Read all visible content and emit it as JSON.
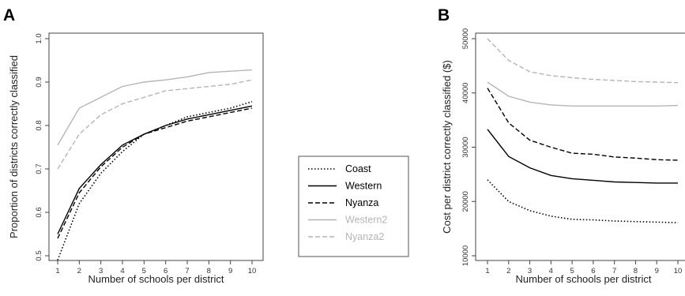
{
  "chart_data": [
    {
      "panel_label": "A",
      "type": "line",
      "xlabel": "Number of schools per district",
      "ylabel": "Proportion of districts correctly classified",
      "x": [
        1,
        2,
        3,
        4,
        5,
        6,
        7,
        8,
        9,
        10
      ],
      "xticks": [
        1,
        2,
        3,
        4,
        5,
        6,
        7,
        8,
        9,
        10
      ],
      "xlim": [
        1,
        10
      ],
      "ylim": [
        0.5,
        1.0
      ],
      "yticks": [
        0.5,
        0.6,
        0.7,
        0.8,
        0.9,
        1.0
      ],
      "ytick_labels": [
        "0.5",
        "0.6",
        "0.7",
        "0.8",
        "0.9",
        "1.0"
      ],
      "grid": false,
      "series": [
        {
          "name": "Coast",
          "color": "#000000",
          "dash": "dotted",
          "values": [
            0.49,
            0.62,
            0.69,
            0.74,
            0.78,
            0.8,
            0.82,
            0.83,
            0.84,
            0.855
          ]
        },
        {
          "name": "Western",
          "color": "#000000",
          "dash": "solid",
          "values": [
            0.55,
            0.655,
            0.71,
            0.755,
            0.78,
            0.8,
            0.815,
            0.825,
            0.835,
            0.845
          ]
        },
        {
          "name": "Nyanza",
          "color": "#000000",
          "dash": "dashed",
          "values": [
            0.54,
            0.645,
            0.705,
            0.75,
            0.78,
            0.795,
            0.81,
            0.82,
            0.83,
            0.84
          ]
        },
        {
          "name": "Western2",
          "color": "#b5b5b5",
          "dash": "solid",
          "values": [
            0.755,
            0.84,
            0.865,
            0.89,
            0.9,
            0.905,
            0.912,
            0.922,
            0.925,
            0.928
          ]
        },
        {
          "name": "Nyanza2",
          "color": "#b5b5b5",
          "dash": "dashed",
          "values": [
            0.7,
            0.78,
            0.825,
            0.85,
            0.865,
            0.88,
            0.885,
            0.89,
            0.895,
            0.905
          ]
        }
      ]
    },
    {
      "panel_label": "B",
      "type": "line",
      "xlabel": "Number of schools per district",
      "ylabel": "Cost per district correctly classified ($)",
      "x": [
        1,
        2,
        3,
        4,
        5,
        6,
        7,
        8,
        9,
        10
      ],
      "xticks": [
        1,
        2,
        3,
        4,
        5,
        6,
        7,
        8,
        9,
        10
      ],
      "xlim": [
        1,
        10
      ],
      "ylim": [
        10000,
        50000
      ],
      "yticks": [
        10000,
        20000,
        30000,
        40000,
        50000
      ],
      "ytick_labels": [
        "10000",
        "20000",
        "30000",
        "40000",
        "50000"
      ],
      "grid": false,
      "series": [
        {
          "name": "Coast",
          "color": "#000000",
          "dash": "dotted",
          "values": [
            24000,
            20000,
            18300,
            17300,
            16700,
            16600,
            16400,
            16300,
            16200,
            16100
          ]
        },
        {
          "name": "Western",
          "color": "#000000",
          "dash": "solid",
          "values": [
            33300,
            28300,
            26200,
            24800,
            24200,
            23900,
            23600,
            23500,
            23400,
            23400
          ]
        },
        {
          "name": "Nyanza",
          "color": "#000000",
          "dash": "dashed",
          "values": [
            40900,
            34500,
            31300,
            30000,
            28900,
            28700,
            28200,
            28000,
            27700,
            27600
          ]
        },
        {
          "name": "Western2",
          "color": "#b5b5b5",
          "dash": "solid",
          "values": [
            42000,
            39400,
            38300,
            37800,
            37600,
            37600,
            37600,
            37600,
            37600,
            37700
          ]
        },
        {
          "name": "Nyanza2",
          "color": "#b5b5b5",
          "dash": "dashed",
          "values": [
            50000,
            46000,
            43900,
            43200,
            42800,
            42500,
            42300,
            42100,
            42000,
            41900
          ]
        }
      ]
    }
  ],
  "legend": {
    "placement": "center between panels",
    "entries": [
      {
        "label": "Coast",
        "color": "#000000",
        "text_color": "#000000",
        "dash": "dotted"
      },
      {
        "label": "Western",
        "color": "#000000",
        "text_color": "#000000",
        "dash": "solid"
      },
      {
        "label": "Nyanza",
        "color": "#000000",
        "text_color": "#000000",
        "dash": "dashed"
      },
      {
        "label": "Western2",
        "color": "#b5b5b5",
        "text_color": "#b5b5b5",
        "dash": "solid"
      },
      {
        "label": "Nyanza2",
        "color": "#b5b5b5",
        "text_color": "#b5b5b5",
        "dash": "dashed"
      }
    ]
  }
}
